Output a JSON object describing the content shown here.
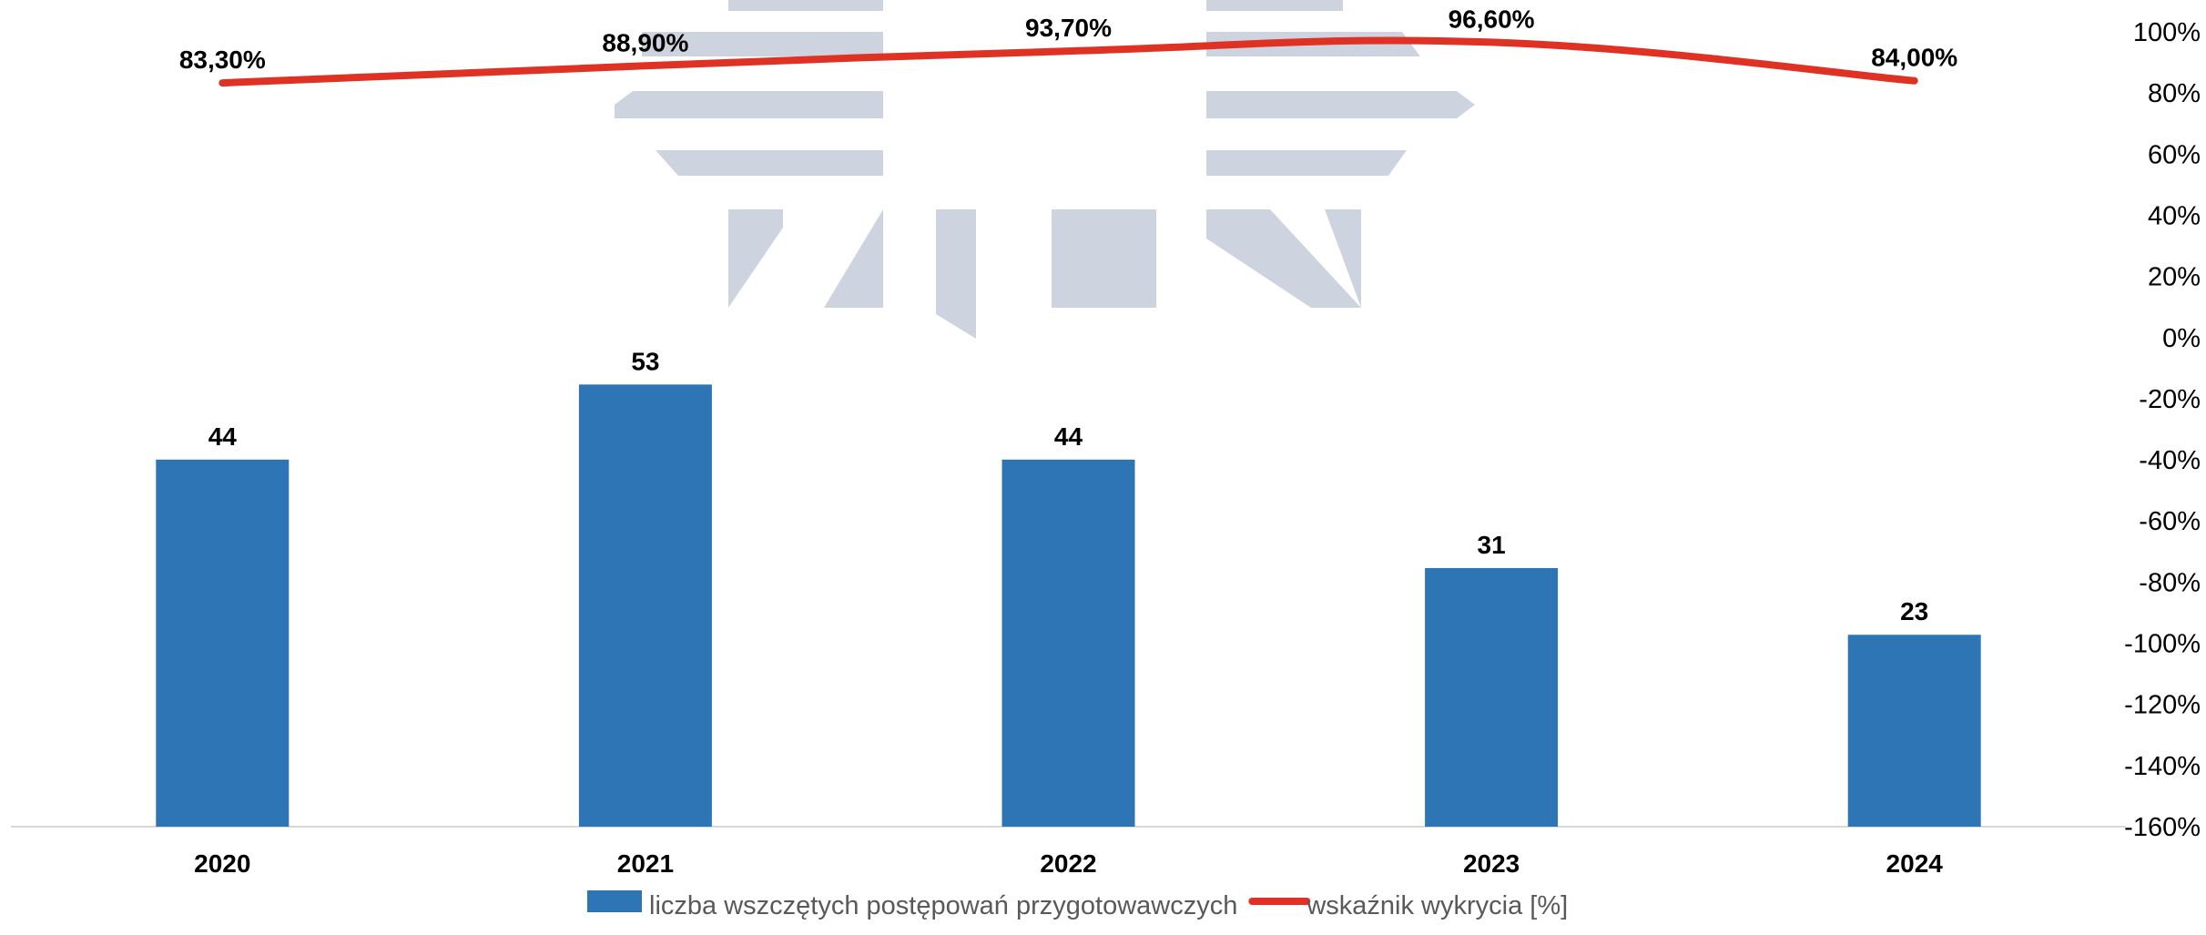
{
  "chart_data": {
    "type": "bar",
    "categories": [
      "2020",
      "2021",
      "2022",
      "2023",
      "2024"
    ],
    "series": [
      {
        "name": "liczba wszczętych postępowań przygotowawczych",
        "type": "bar",
        "axis": "left",
        "values": [
          44,
          53,
          44,
          31,
          23
        ],
        "labels": [
          "44",
          "53",
          "44",
          "31",
          "23"
        ],
        "color": "#2e75b6"
      },
      {
        "name": "wskaźnik wykrycia [%]",
        "type": "line",
        "axis": "right",
        "smooth": true,
        "values": [
          83.3,
          88.9,
          93.7,
          96.6,
          84.0
        ],
        "labels": [
          "83,30%",
          "88,90%",
          "93,70%",
          "96,60%",
          "84,00%"
        ],
        "color": "#e03224"
      }
    ],
    "y_left": {
      "ylim": [
        0,
        98
      ],
      "visible": false
    },
    "y_right": {
      "ylim": [
        -160,
        100
      ],
      "ticks": [
        100,
        80,
        60,
        40,
        20,
        0,
        -20,
        -40,
        -60,
        -80,
        -100,
        -120,
        -140,
        -160
      ],
      "tick_labels": [
        "100%",
        "80%",
        "60%",
        "40%",
        "20%",
        "0%",
        "-20%",
        "-40%",
        "-60%",
        "-80%",
        "-100%",
        "-120%",
        "-140%",
        "-160%"
      ]
    },
    "grid": false,
    "legend": {
      "position": "bottom-center",
      "items": [
        "liczba wszczętych postępowań przygotowawczych",
        "wskaźnik wykrycia [%]"
      ]
    },
    "colors": {
      "axis_line": "#d9d9d9",
      "text": "#000000",
      "legend_text": "#595959"
    }
  }
}
